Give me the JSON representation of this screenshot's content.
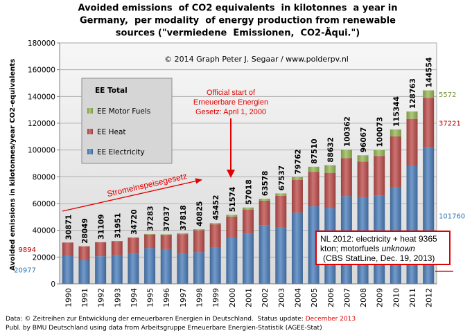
{
  "chart_data": {
    "type": "bar",
    "stacked": true,
    "title": [
      "Avoided emissions  of CO2 equivalents  in kilotonnes  a year in",
      "Germany,  per modality  of energy production from renewable",
      "sources (\"vermiedene  Emissionen,  CO2-Äqui.\")"
    ],
    "xlabel": "",
    "ylabel": "Avoided emissions in kilotonnes/year CO2-equivalents",
    "categories": [
      "1990",
      "1991",
      "1992",
      "1993",
      "1994",
      "1995",
      "1996",
      "1997",
      "1998",
      "1999",
      "2000",
      "2001",
      "2002",
      "2003",
      "2004",
      "2005",
      "2006",
      "2007",
      "2008",
      "2009",
      "2010",
      "2011",
      "2012"
    ],
    "ylim": [
      0,
      180000
    ],
    "yticks": [
      0,
      20000,
      40000,
      60000,
      80000,
      100000,
      120000,
      140000,
      160000,
      180000
    ],
    "grid": true,
    "legend_position": "upper-left",
    "legend_title": "EE Total",
    "series": [
      {
        "name": "EE Electricity",
        "color": "#4f81bd",
        "label_color": "#2e75b6",
        "values": [
          20977,
          17600,
          20600,
          21500,
          22400,
          26700,
          25900,
          22300,
          23600,
          27400,
          34400,
          37400,
          43600,
          42400,
          53200,
          57900,
          56700,
          65500,
          64700,
          65800,
          72400,
          88200,
          101760
        ],
        "first_label": "20977",
        "last_label": "101760"
      },
      {
        "name": "EE Heat",
        "color": "#c0504d",
        "label_color": "#c00000",
        "values": [
          9894,
          10449,
          10509,
          10451,
          12020,
          10183,
          10737,
          14818,
          16425,
          17052,
          15874,
          18118,
          18478,
          23337,
          24562,
          25810,
          26232,
          28362,
          26567,
          29773,
          37744,
          35063,
          37221
        ],
        "first_label": "9894",
        "last_label": "37221"
      },
      {
        "name": "EE Motor Fuels",
        "color": "#9bbb59",
        "label_color": "#77933c",
        "values": [
          0,
          0,
          0,
          0,
          300,
          400,
          400,
          700,
          800,
          1000,
          1300,
          1500,
          1500,
          1800,
          2000,
          3800,
          5700,
          6500,
          4800,
          4500,
          5200,
          5500,
          5572
        ],
        "last_label": "5572"
      }
    ],
    "totals": [
      30871,
      28049,
      31109,
      31951,
      34720,
      37283,
      37037,
      37818,
      40825,
      45452,
      51574,
      57018,
      63578,
      67537,
      79762,
      87510,
      88632,
      100362,
      96067,
      100073,
      115344,
      128763,
      144554
    ],
    "marker": {
      "value": 9365,
      "color": "#e00000"
    },
    "copyright": "© 2014 Graph Peter J. Segaar / www.polderpv.nl",
    "annotations": {
      "eeg": [
        "Official start of",
        "Erneuerbare Energien",
        "Gesetz: April 1, 2000"
      ],
      "stromeinspeisegesetz": "Stromeinspeisegesetz"
    },
    "nl_box": {
      "line1": "NL 2012: electricity + heat 9365",
      "line2_a": "kton; motorfuels ",
      "line2_b": "unknown",
      "line3": "(CBS StatLine, Dec. 19, 2013)"
    }
  },
  "footer": {
    "line1_a": "Data: © Zeitreihen zur Entwicklung der erneuerbaren Energien in Deutschland.  Status update: ",
    "line1_b": "December 2013",
    "line2": "Publ. by BMU Deutschland using data from Arbeitsgruppe Erneuerbare Energien-Statistik (AGEE-Stat)"
  },
  "colors": {
    "annotation": "#e00000",
    "nl_box_border": "#e00000",
    "footer_highlight": "#e00000",
    "grid": "#a6a6a6"
  }
}
